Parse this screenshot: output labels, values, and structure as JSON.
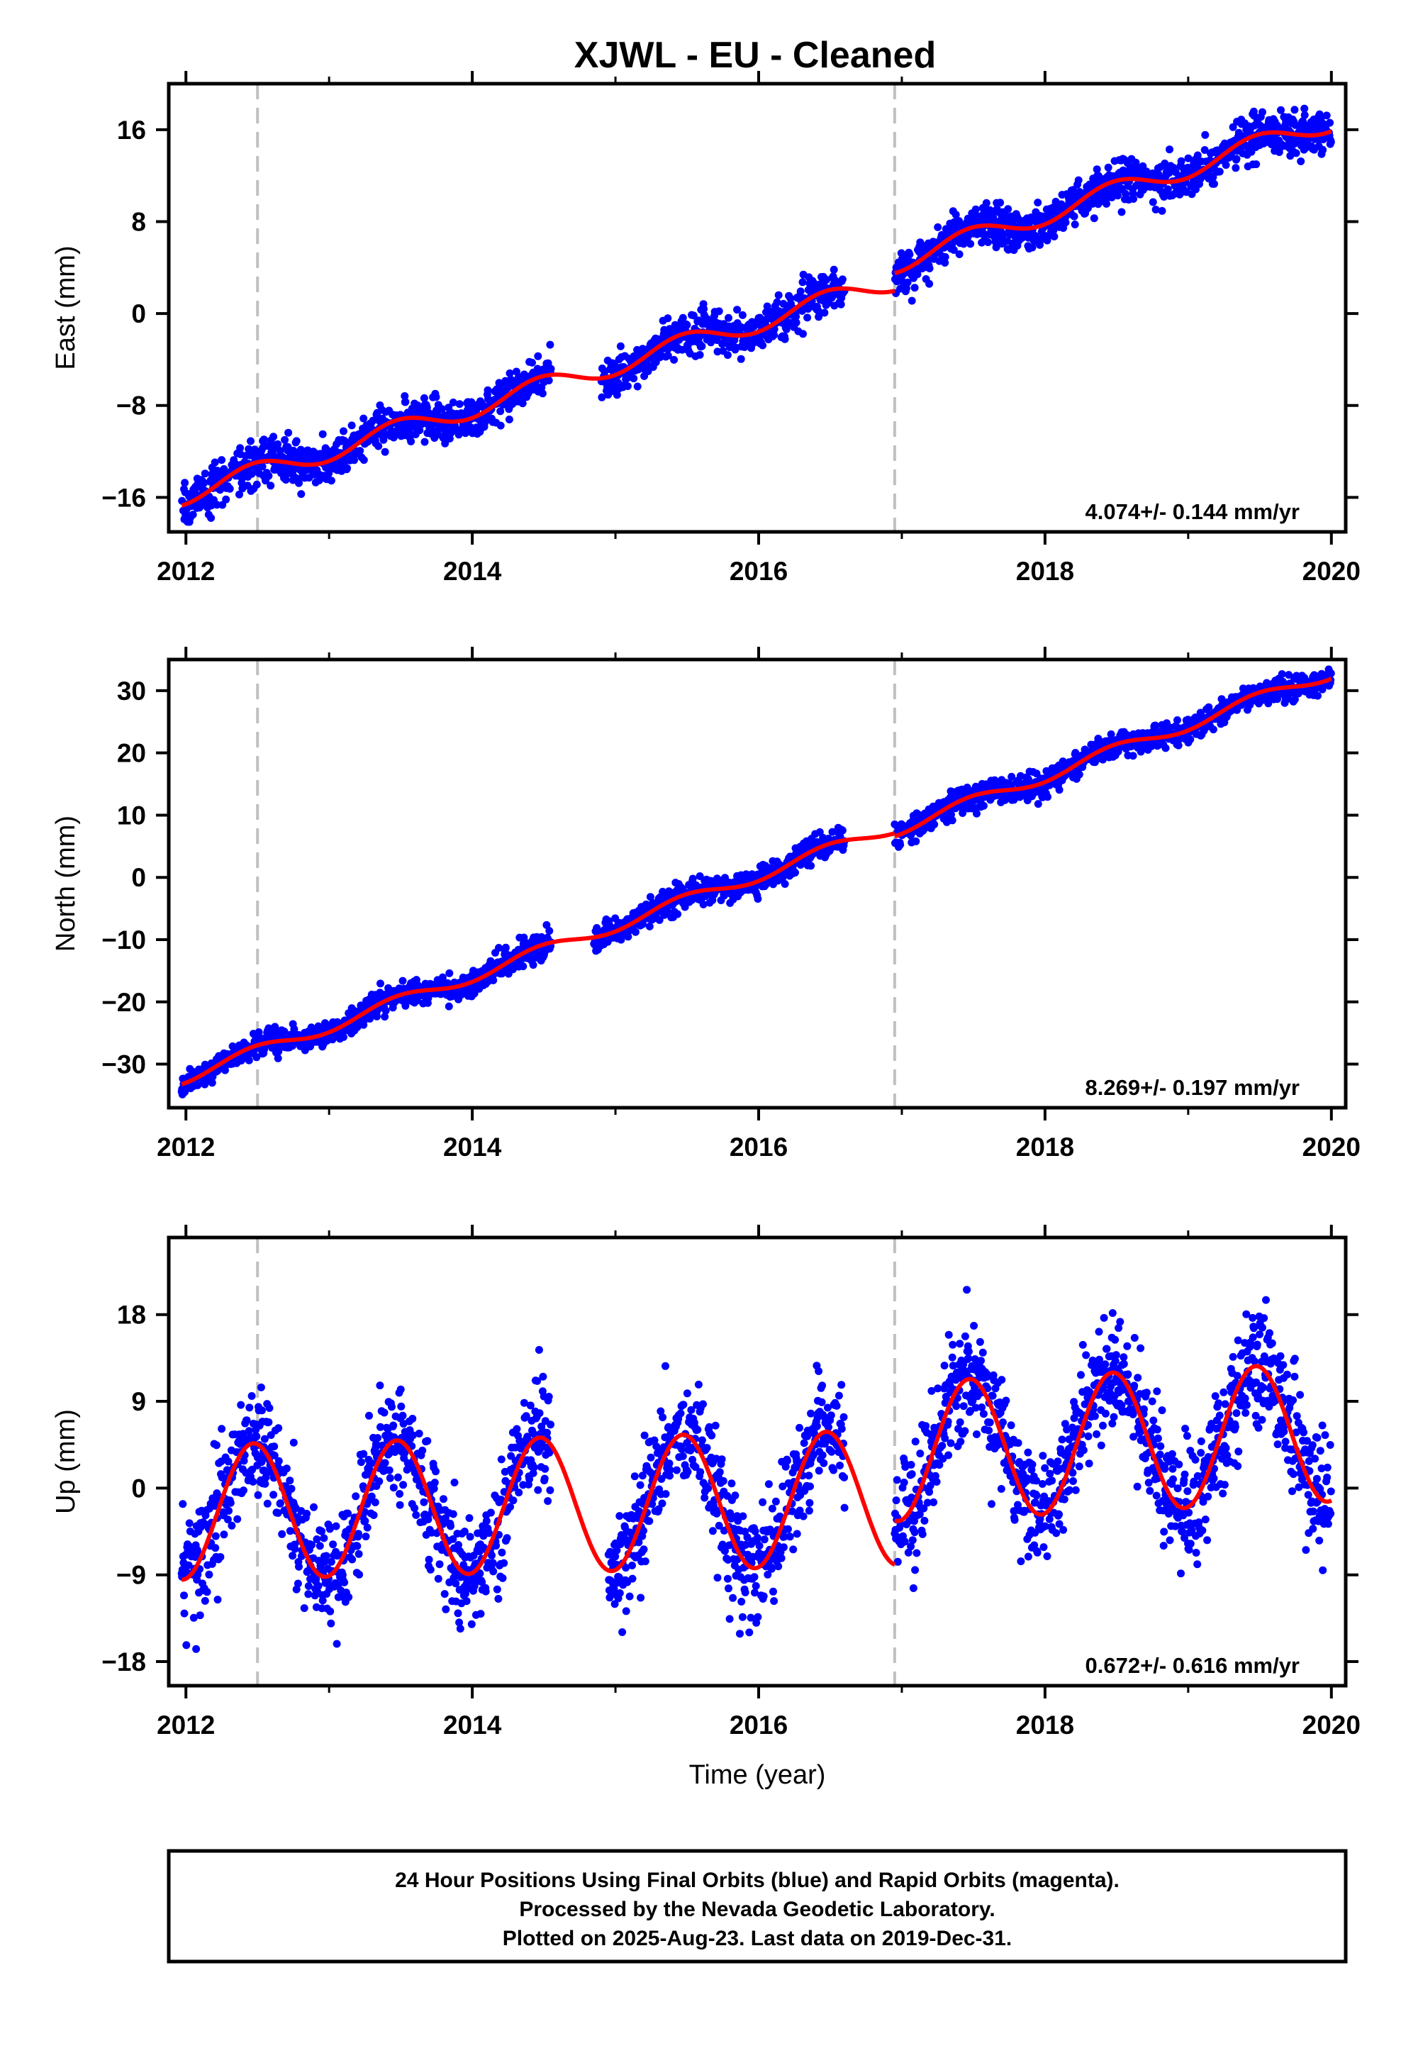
{
  "title": "XJWL  - EU - Cleaned",
  "footer": {
    "lines": [
      "24 Hour Positions Using Final Orbits (blue) and Rapid Orbits (magenta).",
      "Processed by the Nevada Geodetic Laboratory.",
      "Plotted on 2025-Aug-23. Last data on 2019-Dec-31."
    ]
  },
  "colors": {
    "points": "#0000ff",
    "model": "#ff0000",
    "breaks": "#c0c0c0",
    "frame": "#000000"
  },
  "chart_data": [
    {
      "type": "scatter",
      "ylabel": "East (mm)",
      "xlabel": "",
      "xlim": [
        2011.88,
        2020.1
      ],
      "ylim": [
        -19,
        20
      ],
      "xticks": [
        2012,
        2014,
        2016,
        2018,
        2020
      ],
      "xtick_labels": [
        "2012",
        "2014",
        "2016",
        "2018",
        "2020"
      ],
      "yticks": [
        -16,
        -8,
        0,
        8,
        16
      ],
      "ytick_labels": [
        "−16",
        "−8",
        "0",
        "8",
        "16"
      ],
      "rate_label": "4.074+/- 0.144 mm/yr",
      "breaks": [
        2012.5,
        2016.95
      ],
      "data_gaps": [
        [
          2014.55,
          2014.9
        ],
        [
          2016.6,
          2016.95
        ]
      ],
      "noise": 0.9,
      "model": {
        "segments": [
          {
            "start": 2011.97,
            "end": 2016.95,
            "offset": -15.7,
            "t0": 2012.0,
            "rate": 3.75,
            "annual_amp": 0.9,
            "annual_phase": 1.4
          },
          {
            "start": 2016.95,
            "end": 2020.0,
            "offset": 4.6,
            "t0": 2017.0,
            "rate": 4.05,
            "annual_amp": 0.9,
            "annual_phase": 1.4
          }
        ]
      }
    },
    {
      "type": "scatter",
      "ylabel": "North (mm)",
      "xlabel": "",
      "xlim": [
        2011.88,
        2020.1
      ],
      "ylim": [
        -37,
        35
      ],
      "xticks": [
        2012,
        2014,
        2016,
        2018,
        2020
      ],
      "xtick_labels": [
        "2012",
        "2014",
        "2016",
        "2018",
        "2020"
      ],
      "yticks": [
        -30,
        -20,
        -10,
        0,
        10,
        20,
        30
      ],
      "ytick_labels": [
        "−30",
        "−20",
        "−10",
        "0",
        "10",
        "20",
        "30"
      ],
      "rate_label": "8.269+/- 0.197 mm/yr",
      "breaks": [
        2012.5,
        2016.95
      ],
      "data_gaps": [
        [
          2014.55,
          2014.85
        ],
        [
          2016.6,
          2016.95
        ]
      ],
      "noise": 1.0,
      "model": {
        "segments": [
          {
            "start": 2011.97,
            "end": 2016.95,
            "offset": -32.0,
            "t0": 2012.0,
            "rate": 8.1,
            "annual_amp": 1.0,
            "annual_phase": 1.4
          },
          {
            "start": 2016.95,
            "end": 2020.0,
            "offset": 8.0,
            "t0": 2017.0,
            "rate": 8.3,
            "annual_amp": 1.0,
            "annual_phase": 1.4
          }
        ]
      }
    },
    {
      "type": "scatter",
      "ylabel": "Up (mm)",
      "xlabel": "Time (year)",
      "xlim": [
        2011.88,
        2020.1
      ],
      "ylim": [
        -20.5,
        26
      ],
      "xticks": [
        2012,
        2014,
        2016,
        2018,
        2020
      ],
      "xtick_labels": [
        "2012",
        "2014",
        "2016",
        "2018",
        "2020"
      ],
      "yticks": [
        -18,
        -9,
        0,
        9,
        18
      ],
      "ytick_labels": [
        "−18",
        "−9",
        "0",
        "9",
        "18"
      ],
      "rate_label": "0.672+/- 0.616 mm/yr",
      "breaks": [
        2012.5,
        2016.95
      ],
      "data_gaps": [
        [
          2014.55,
          2014.95
        ],
        [
          2016.6,
          2016.95
        ]
      ],
      "noise": 3.0,
      "model": {
        "segments": [
          {
            "start": 2011.97,
            "end": 2016.95,
            "offset": -2.5,
            "t0": 2012.0,
            "rate": 0.3,
            "annual_amp": 7.0,
            "annual_phase": 1.4
          },
          {
            "start": 2016.95,
            "end": 2020.0,
            "offset": 3.8,
            "t0": 2017.0,
            "rate": 0.67,
            "annual_amp": 7.2,
            "annual_phase": 1.4
          }
        ]
      }
    }
  ]
}
